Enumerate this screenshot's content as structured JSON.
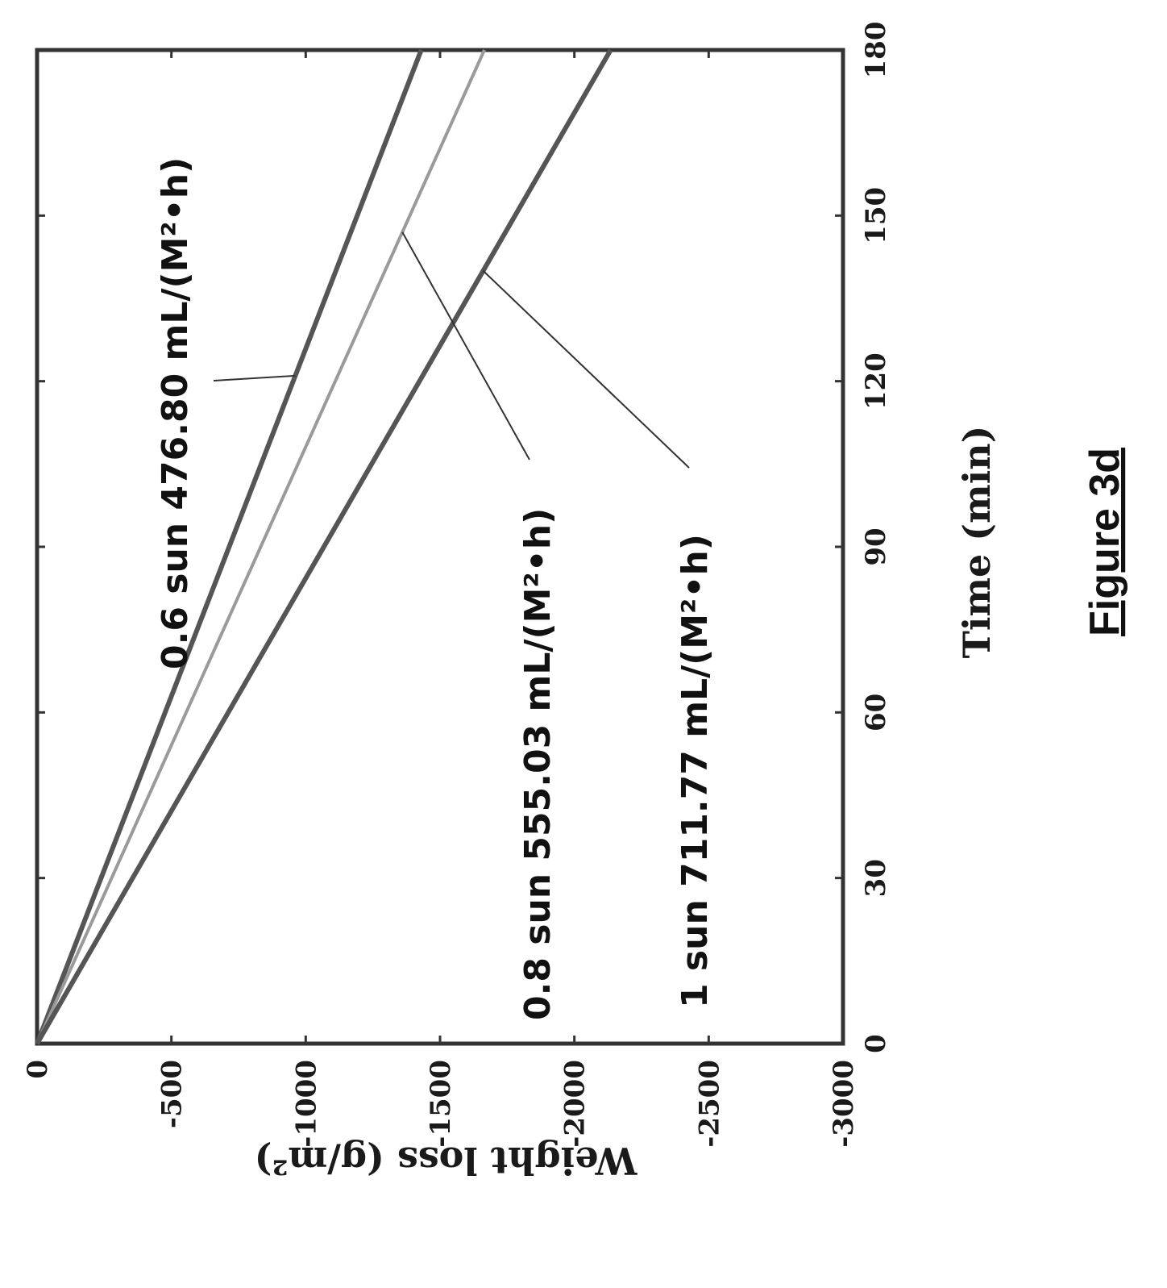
{
  "figure_label": "Figure 3d",
  "chart_data": {
    "type": "line",
    "xlabel": "Time (min)",
    "ylabel": "Weight loss (g/m²)",
    "xlim": [
      0,
      180
    ],
    "ylim": [
      -3000,
      0
    ],
    "xticks": [
      0,
      30,
      60,
      90,
      120,
      150,
      180
    ],
    "yticks": [
      0,
      -500,
      -1000,
      -1500,
      -2000,
      -2500,
      -3000
    ],
    "x_tick_labels": [
      "0",
      "30",
      "60",
      "90",
      "120",
      "150",
      "180"
    ],
    "y_tick_labels": [
      "0",
      "-500",
      "-1000",
      "-1500",
      "-2000",
      "-2500",
      "-3000"
    ],
    "grid": false,
    "orientation": "rotated 90° counter-clockwise",
    "series": [
      {
        "name": "0.6 sun  476.80 mL/(M²•h)",
        "color": "#555555",
        "x": [
          0,
          180
        ],
        "y": [
          0,
          -1430
        ]
      },
      {
        "name": "0.8 sun  555.03 mL/(M²•h)",
        "color": "#9a9a9a",
        "x": [
          0,
          180
        ],
        "y": [
          0,
          -1665
        ]
      },
      {
        "name": "1 sun  711.77 mL/(M²•h)",
        "color": "#555555",
        "x": [
          0,
          180
        ],
        "y": [
          0,
          -2135
        ]
      }
    ]
  }
}
